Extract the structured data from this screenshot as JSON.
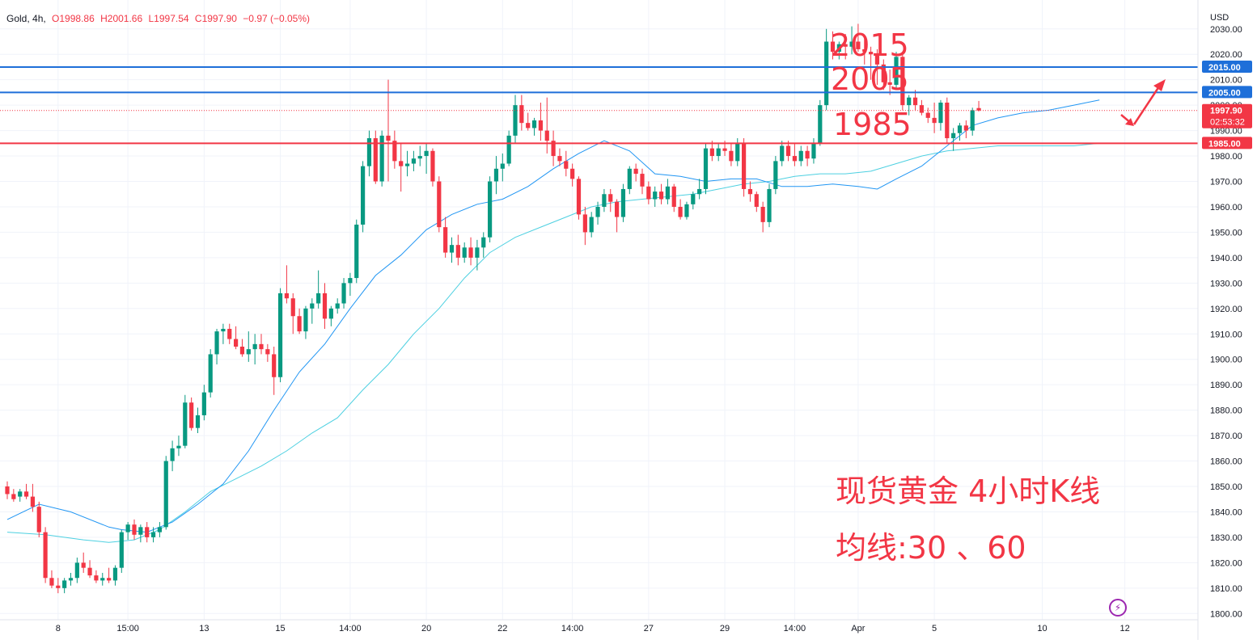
{
  "header": {
    "symbol": "Gold, 4h,",
    "open": "O1998.86",
    "high": "H2001.66",
    "low": "L1997.54",
    "close": "C1997.90",
    "change": "−0.97 (−0.05%)"
  },
  "axis_unit": "USD",
  "price_tag": {
    "value": "1997.90",
    "countdown": "02:53:32"
  },
  "annotations": {
    "level_2015": "2015",
    "level_2005": "2005",
    "level_1985": "1985",
    "caption_line1": "现货黄金 4小时K线",
    "caption_line2": "均线:30 、60"
  },
  "icons": {
    "flash": "lightning-icon"
  },
  "colors": {
    "up": "#089981",
    "down": "#f23645",
    "ma30": "#2196f3",
    "ma60": "#4dd0e1",
    "level_blue": "#1e6fd9",
    "level_red": "#f23645",
    "annotation": "#f23645"
  },
  "chart_data": {
    "type": "candlestick",
    "title": "Gold, 4h",
    "ylim": [
      1795,
      2035
    ],
    "y_ticks": [
      1800,
      1810,
      1820,
      1830,
      1840,
      1850,
      1860,
      1870,
      1880,
      1890,
      1900,
      1910,
      1920,
      1930,
      1940,
      1950,
      1960,
      1970,
      1980,
      1990,
      2000,
      2010,
      2020,
      2030
    ],
    "x_labels": [
      {
        "label": "8",
        "bar": 8
      },
      {
        "label": "15:00",
        "bar": 19
      },
      {
        "label": "13",
        "bar": 31
      },
      {
        "label": "15",
        "bar": 43
      },
      {
        "label": "14:00",
        "bar": 54
      },
      {
        "label": "20",
        "bar": 66
      },
      {
        "label": "22",
        "bar": 78
      },
      {
        "label": "14:00",
        "bar": 89
      },
      {
        "label": "27",
        "bar": 101
      },
      {
        "label": "29",
        "bar": 113
      },
      {
        "label": "14:00",
        "bar": 124
      },
      {
        "label": "Apr",
        "bar": 134
      },
      {
        "label": "5",
        "bar": 146
      },
      {
        "label": "10",
        "bar": 163
      },
      {
        "label": "12",
        "bar": 176
      }
    ],
    "candles": [
      [
        1850,
        1852,
        1845,
        1847
      ],
      [
        1847,
        1849,
        1844,
        1845
      ],
      [
        1846,
        1849,
        1844,
        1848
      ],
      [
        1848,
        1851,
        1845,
        1846
      ],
      [
        1846,
        1851,
        1840,
        1842
      ],
      [
        1842,
        1844,
        1830,
        1832
      ],
      [
        1832,
        1834,
        1812,
        1814
      ],
      [
        1814,
        1817,
        1810,
        1811
      ],
      [
        1811,
        1814,
        1808,
        1810
      ],
      [
        1810,
        1814,
        1808,
        1813
      ],
      [
        1813,
        1816,
        1811,
        1814
      ],
      [
        1814,
        1822,
        1812,
        1820
      ],
      [
        1820,
        1824,
        1816,
        1818
      ],
      [
        1818,
        1821,
        1814,
        1815
      ],
      [
        1815,
        1817,
        1812,
        1813
      ],
      [
        1813,
        1816,
        1811,
        1814
      ],
      [
        1814,
        1818,
        1812,
        1813
      ],
      [
        1813,
        1819,
        1811,
        1818
      ],
      [
        1818,
        1833,
        1816,
        1832
      ],
      [
        1832,
        1836,
        1829,
        1835
      ],
      [
        1835,
        1837,
        1829,
        1831
      ],
      [
        1831,
        1835,
        1828,
        1834
      ],
      [
        1834,
        1836,
        1828,
        1830
      ],
      [
        1830,
        1834,
        1828,
        1832
      ],
      [
        1832,
        1836,
        1830,
        1834
      ],
      [
        1834,
        1862,
        1833,
        1860
      ],
      [
        1860,
        1868,
        1856,
        1865
      ],
      [
        1865,
        1870,
        1862,
        1866
      ],
      [
        1866,
        1886,
        1865,
        1883
      ],
      [
        1883,
        1885,
        1872,
        1873
      ],
      [
        1873,
        1881,
        1871,
        1878
      ],
      [
        1878,
        1890,
        1876,
        1887
      ],
      [
        1887,
        1904,
        1885,
        1902
      ],
      [
        1902,
        1912,
        1898,
        1911
      ],
      [
        1911,
        1914,
        1906,
        1912
      ],
      [
        1912,
        1914,
        1906,
        1908
      ],
      [
        1908,
        1913,
        1904,
        1905
      ],
      [
        1905,
        1908,
        1901,
        1902
      ],
      [
        1902,
        1911,
        1899,
        1904
      ],
      [
        1904,
        1910,
        1898,
        1906
      ],
      [
        1906,
        1910,
        1902,
        1904
      ],
      [
        1904,
        1906,
        1899,
        1902
      ],
      [
        1902,
        1905,
        1886,
        1893
      ],
      [
        1893,
        1928,
        1891,
        1926
      ],
      [
        1926,
        1937,
        1922,
        1924
      ],
      [
        1924,
        1926,
        1910,
        1917
      ],
      [
        1917,
        1920,
        1910,
        1911
      ],
      [
        1911,
        1921,
        1908,
        1920
      ],
      [
        1920,
        1924,
        1914,
        1922
      ],
      [
        1922,
        1935,
        1920,
        1926
      ],
      [
        1926,
        1930,
        1912,
        1916
      ],
      [
        1916,
        1921,
        1913,
        1920
      ],
      [
        1920,
        1924,
        1918,
        1922
      ],
      [
        1922,
        1932,
        1920,
        1930
      ],
      [
        1930,
        1934,
        1925,
        1932
      ],
      [
        1932,
        1955,
        1930,
        1953
      ],
      [
        1953,
        1978,
        1950,
        1976
      ],
      [
        1976,
        1990,
        1972,
        1987
      ],
      [
        1987,
        1990,
        1969,
        1970
      ],
      [
        1970,
        1990,
        1968,
        1988
      ],
      [
        1988,
        2010,
        1970,
        1986
      ],
      [
        1986,
        1990,
        1975,
        1978
      ],
      [
        1978,
        1985,
        1966,
        1976
      ],
      [
        1976,
        1982,
        1972,
        1977
      ],
      [
        1977,
        1982,
        1974,
        1979
      ],
      [
        1979,
        1984,
        1976,
        1980
      ],
      [
        1980,
        1985,
        1973,
        1982
      ],
      [
        1982,
        1983,
        1968,
        1970
      ],
      [
        1970,
        1972,
        1950,
        1952
      ],
      [
        1952,
        1956,
        1940,
        1942
      ],
      [
        1942,
        1948,
        1938,
        1945
      ],
      [
        1945,
        1949,
        1937,
        1940
      ],
      [
        1940,
        1946,
        1938,
        1944
      ],
      [
        1944,
        1948,
        1937,
        1940
      ],
      [
        1940,
        1947,
        1935,
        1944
      ],
      [
        1944,
        1950,
        1940,
        1948
      ],
      [
        1948,
        1972,
        1946,
        1970
      ],
      [
        1970,
        1980,
        1965,
        1975
      ],
      [
        1975,
        1981,
        1970,
        1977
      ],
      [
        1977,
        1990,
        1976,
        1988
      ],
      [
        1988,
        2004,
        1985,
        2000
      ],
      [
        2000,
        2004,
        1990,
        1993
      ],
      [
        1993,
        1997,
        1990,
        1991
      ],
      [
        1991,
        1995,
        1988,
        1994
      ],
      [
        1994,
        2001,
        1986,
        1990
      ],
      [
        1990,
        2003,
        1981,
        1986
      ],
      [
        1986,
        1990,
        1976,
        1980
      ],
      [
        1980,
        1983,
        1976,
        1978
      ],
      [
        1978,
        1982,
        1972,
        1975
      ],
      [
        1975,
        1977,
        1968,
        1971
      ],
      [
        1971,
        1972,
        1955,
        1957
      ],
      [
        1957,
        1960,
        1945,
        1950
      ],
      [
        1950,
        1958,
        1948,
        1956
      ],
      [
        1956,
        1962,
        1953,
        1960
      ],
      [
        1960,
        1967,
        1958,
        1965
      ],
      [
        1965,
        1967,
        1958,
        1962
      ],
      [
        1962,
        1963,
        1950,
        1956
      ],
      [
        1956,
        1969,
        1954,
        1967
      ],
      [
        1967,
        1976,
        1965,
        1975
      ],
      [
        1975,
        1977,
        1970,
        1973
      ],
      [
        1973,
        1975,
        1965,
        1968
      ],
      [
        1968,
        1970,
        1961,
        1963
      ],
      [
        1963,
        1968,
        1960,
        1966
      ],
      [
        1966,
        1969,
        1961,
        1963
      ],
      [
        1963,
        1971,
        1961,
        1968
      ],
      [
        1968,
        1969,
        1958,
        1960
      ],
      [
        1960,
        1963,
        1955,
        1956
      ],
      [
        1956,
        1962,
        1955,
        1961
      ],
      [
        1961,
        1966,
        1959,
        1965
      ],
      [
        1965,
        1971,
        1963,
        1967
      ],
      [
        1967,
        1985,
        1965,
        1983
      ],
      [
        1983,
        1986,
        1978,
        1980
      ],
      [
        1980,
        1985,
        1978,
        1983
      ],
      [
        1983,
        1986,
        1980,
        1982
      ],
      [
        1982,
        1985,
        1976,
        1978
      ],
      [
        1978,
        1987,
        1976,
        1985
      ],
      [
        1985,
        1987,
        1964,
        1967
      ],
      [
        1967,
        1970,
        1962,
        1965
      ],
      [
        1965,
        1966,
        1958,
        1960
      ],
      [
        1960,
        1962,
        1950,
        1954
      ],
      [
        1954,
        1969,
        1952,
        1967
      ],
      [
        1967,
        1980,
        1965,
        1978
      ],
      [
        1978,
        1986,
        1976,
        1984
      ],
      [
        1984,
        1986,
        1978,
        1980
      ],
      [
        1980,
        1985,
        1976,
        1978
      ],
      [
        1978,
        1984,
        1976,
        1982
      ],
      [
        1982,
        1984,
        1976,
        1979
      ],
      [
        1979,
        1987,
        1977,
        1985
      ],
      [
        1985,
        2002,
        1984,
        2000
      ],
      [
        2000,
        2030,
        1998,
        2025
      ],
      [
        2025,
        2029,
        2018,
        2021
      ],
      [
        2021,
        2025,
        2018,
        2024
      ],
      [
        2024,
        2028,
        2018,
        2023
      ],
      [
        2023,
        2031,
        2020,
        2025
      ],
      [
        2025,
        2032,
        2021,
        2022
      ],
      [
        2022,
        2026,
        2016,
        2021
      ],
      [
        2021,
        2023,
        2010,
        2020
      ],
      [
        2020,
        2022,
        2008,
        2016
      ],
      [
        2016,
        2018,
        2006,
        2009
      ],
      [
        2009,
        2014,
        2004,
        2008
      ],
      [
        2008,
        2021,
        2006,
        2019
      ],
      [
        2019,
        2021,
        1998,
        2000
      ],
      [
        2000,
        2004,
        1996,
        2003
      ],
      [
        2003,
        2006,
        1998,
        2000
      ],
      [
        2000,
        2002,
        1996,
        1997
      ],
      [
        1997,
        1999,
        1993,
        1995
      ],
      [
        1995,
        2001,
        1989,
        1993
      ],
      [
        1993,
        2002,
        1990,
        2001
      ],
      [
        2001,
        2003,
        1985,
        1987
      ],
      [
        1987,
        1991,
        1982,
        1989
      ],
      [
        1989,
        1993,
        1986,
        1992
      ],
      [
        1992,
        1994,
        1987,
        1990
      ],
      [
        1990,
        1999,
        1988,
        1998
      ],
      [
        1998.86,
        2001.66,
        1997.54,
        1997.9
      ]
    ],
    "ma30": [
      [
        0,
        1837
      ],
      [
        5,
        1843
      ],
      [
        10,
        1840
      ],
      [
        16,
        1834
      ],
      [
        18,
        1833
      ],
      [
        22,
        1832
      ],
      [
        26,
        1836
      ],
      [
        30,
        1843
      ],
      [
        34,
        1851
      ],
      [
        38,
        1864
      ],
      [
        42,
        1880
      ],
      [
        46,
        1895
      ],
      [
        50,
        1906
      ],
      [
        54,
        1920
      ],
      [
        58,
        1933
      ],
      [
        62,
        1941
      ],
      [
        66,
        1951
      ],
      [
        70,
        1957
      ],
      [
        74,
        1961
      ],
      [
        78,
        1963
      ],
      [
        82,
        1968
      ],
      [
        86,
        1975
      ],
      [
        90,
        1981
      ],
      [
        94,
        1986
      ],
      [
        98,
        1982
      ],
      [
        102,
        1973
      ],
      [
        106,
        1972
      ],
      [
        110,
        1970
      ],
      [
        114,
        1971
      ],
      [
        118,
        1971
      ],
      [
        122,
        1968
      ],
      [
        126,
        1968
      ],
      [
        130,
        1969
      ],
      [
        134,
        1968
      ],
      [
        137,
        1967
      ],
      [
        140,
        1971
      ],
      [
        144,
        1976
      ],
      [
        148,
        1984
      ],
      [
        152,
        1992
      ],
      [
        156,
        1995
      ],
      [
        160,
        1997
      ],
      [
        164,
        1998
      ],
      [
        168,
        2000
      ],
      [
        172,
        2002
      ]
    ],
    "ma60": [
      [
        0,
        1832
      ],
      [
        6,
        1831
      ],
      [
        12,
        1829
      ],
      [
        16,
        1828
      ],
      [
        20,
        1829
      ],
      [
        24,
        1833
      ],
      [
        28,
        1840
      ],
      [
        32,
        1848
      ],
      [
        36,
        1853
      ],
      [
        40,
        1858
      ],
      [
        44,
        1864
      ],
      [
        48,
        1871
      ],
      [
        52,
        1877
      ],
      [
        56,
        1888
      ],
      [
        60,
        1898
      ],
      [
        64,
        1910
      ],
      [
        68,
        1920
      ],
      [
        72,
        1932
      ],
      [
        76,
        1942
      ],
      [
        80,
        1948
      ],
      [
        84,
        1952
      ],
      [
        88,
        1956
      ],
      [
        92,
        1960
      ],
      [
        96,
        1962
      ],
      [
        100,
        1963
      ],
      [
        104,
        1964
      ],
      [
        108,
        1965
      ],
      [
        112,
        1967
      ],
      [
        116,
        1969
      ],
      [
        120,
        1970
      ],
      [
        124,
        1972
      ],
      [
        128,
        1973
      ],
      [
        132,
        1973
      ],
      [
        136,
        1974
      ],
      [
        140,
        1977
      ],
      [
        144,
        1980
      ],
      [
        148,
        1982
      ],
      [
        152,
        1983
      ],
      [
        156,
        1984
      ],
      [
        160,
        1984
      ],
      [
        164,
        1984
      ],
      [
        168,
        1984
      ],
      [
        172,
        1985
      ]
    ],
    "horizontal_levels": [
      {
        "value": 2015,
        "label": "2015.00",
        "color": "blue"
      },
      {
        "value": 2005,
        "label": "2005.00",
        "color": "blue"
      },
      {
        "value": 1985,
        "label": "1985.00",
        "color": "red"
      }
    ],
    "current_price": 1997.9
  }
}
